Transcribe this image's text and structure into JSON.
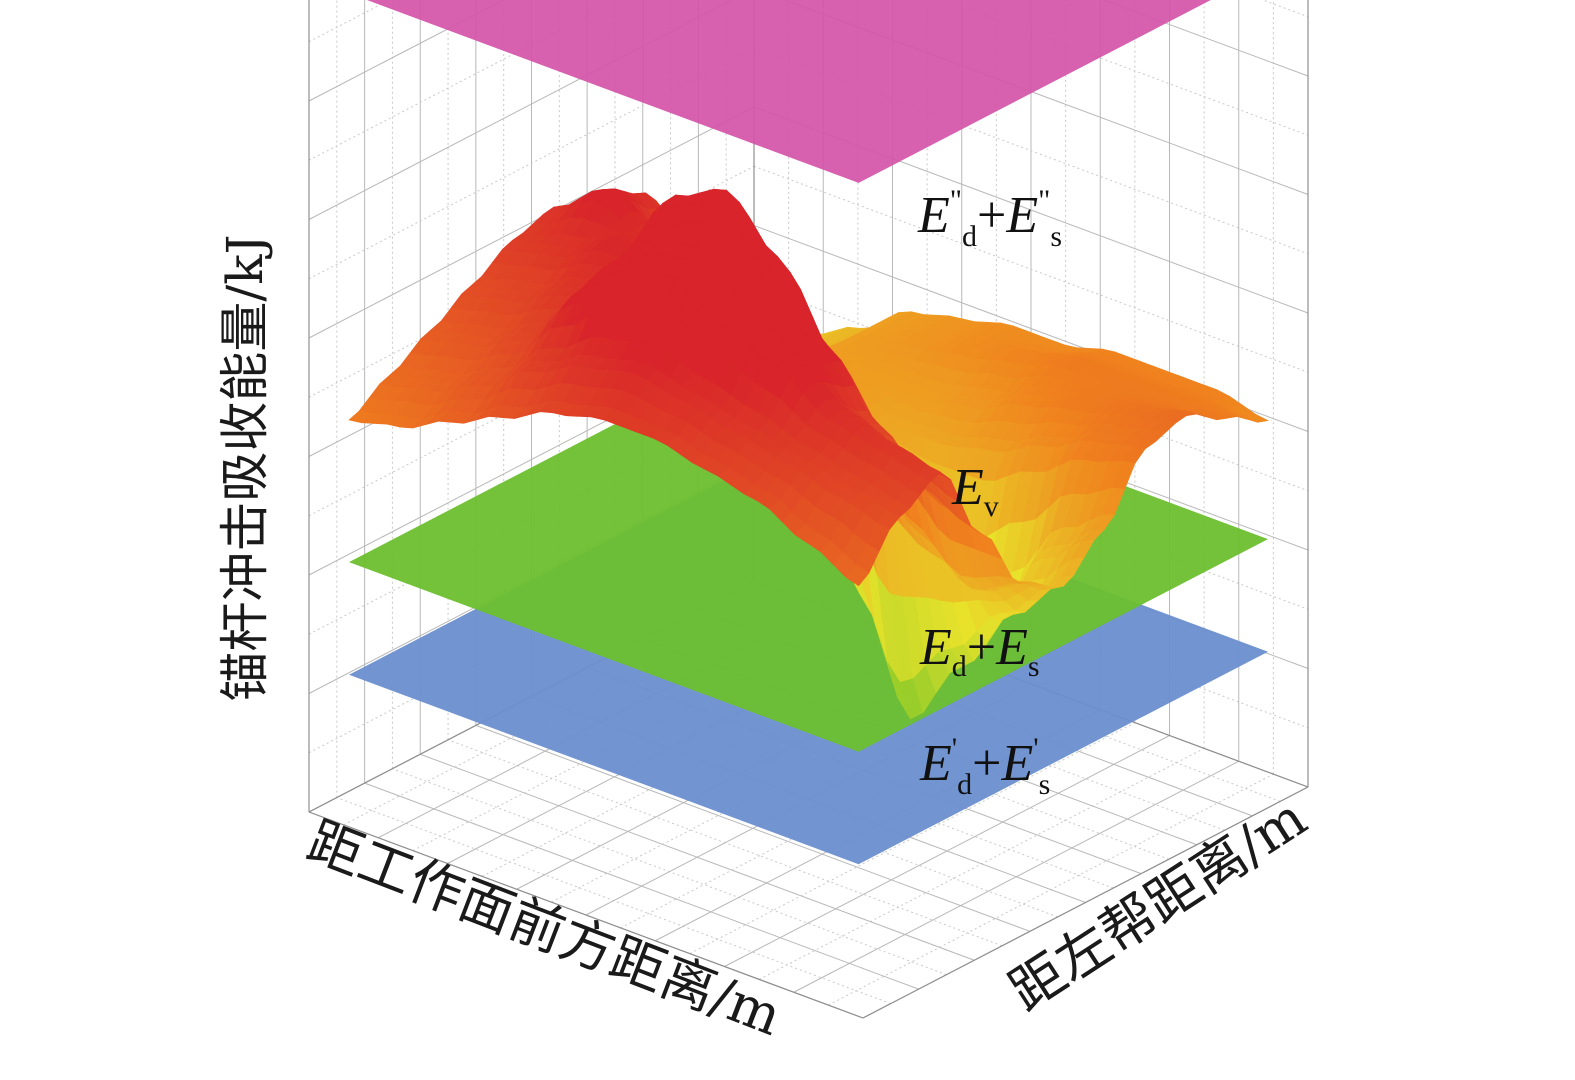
{
  "chart_data": {
    "type": "surface3d",
    "title": "",
    "xlabel": "距工作面前方距离/m",
    "ylabel": "距左帮距离/m",
    "zlabel": "锚杆冲击吸收能量/kJ",
    "zlim": [
      0,
      8
    ],
    "grid": true,
    "colors": {
      "upper_plane": "#d452a8",
      "middle_plane": "#6cbf2e",
      "lower_plane": "#6a8fd0",
      "surface_low": "#7cc52a",
      "surface_mid": "#e8e22a",
      "surface_high": "#d8242a"
    },
    "planes": [
      {
        "name": "E\"d+E\"s",
        "main": "E",
        "sub1": "d",
        "sup1": "\"",
        "plus": "+",
        "main2": "E",
        "sub2": "s",
        "sup2": "\"",
        "z": 6.9
      },
      {
        "name": "Ed+Es",
        "main": "E",
        "sub1": "d",
        "sup1": "",
        "plus": "+",
        "main2": "E",
        "sub2": "s",
        "sup2": "",
        "z": 2.1
      },
      {
        "name": "E'd+E's",
        "main": "E",
        "sub1": "d",
        "sup1": "'",
        "plus": "+",
        "main2": "E",
        "sub2": "s",
        "sup2": "'",
        "z": 1.15
      }
    ],
    "surface": {
      "name": "Ev",
      "main": "E",
      "sub": "v",
      "z": [
        [
          3.5,
          3.9,
          4.1,
          3.4,
          2.8,
          2.6,
          2.9,
          3.4,
          3.5,
          3.3,
          3.1
        ],
        [
          3.7,
          4.0,
          4.2,
          3.6,
          2.6,
          2.2,
          2.6,
          3.3,
          3.4,
          3.3,
          3.2
        ],
        [
          3.9,
          4.1,
          4.3,
          4.0,
          2.9,
          1.6,
          2.0,
          3.1,
          3.3,
          3.3,
          3.2
        ],
        [
          4.0,
          4.2,
          4.6,
          4.5,
          3.3,
          1.0,
          1.6,
          2.9,
          3.2,
          3.3,
          3.2
        ],
        [
          4.1,
          4.3,
          4.8,
          5.1,
          3.9,
          1.9,
          2.1,
          2.8,
          3.0,
          3.2,
          3.1
        ],
        [
          4.1,
          4.4,
          5.1,
          5.5,
          4.4,
          3.0,
          2.7,
          2.8,
          2.9,
          3.1,
          3.1
        ],
        [
          4.0,
          4.3,
          5.0,
          5.3,
          4.5,
          3.4,
          2.9,
          2.9,
          2.9,
          3.0,
          3.0
        ],
        [
          3.8,
          4.1,
          4.5,
          4.6,
          4.3,
          3.6,
          3.1,
          3.0,
          2.9,
          2.9,
          2.9
        ],
        [
          3.6,
          3.8,
          4.0,
          4.2,
          4.4,
          4.3,
          3.7,
          3.1,
          2.7,
          2.6,
          2.6
        ],
        [
          3.4,
          3.6,
          3.8,
          4.0,
          4.2,
          4.5,
          4.3,
          3.6,
          2.9,
          2.5,
          2.4
        ],
        [
          3.3,
          3.5,
          3.7,
          3.9,
          4.1,
          4.2,
          4.0,
          3.5,
          2.8,
          2.5,
          2.4
        ]
      ]
    }
  }
}
